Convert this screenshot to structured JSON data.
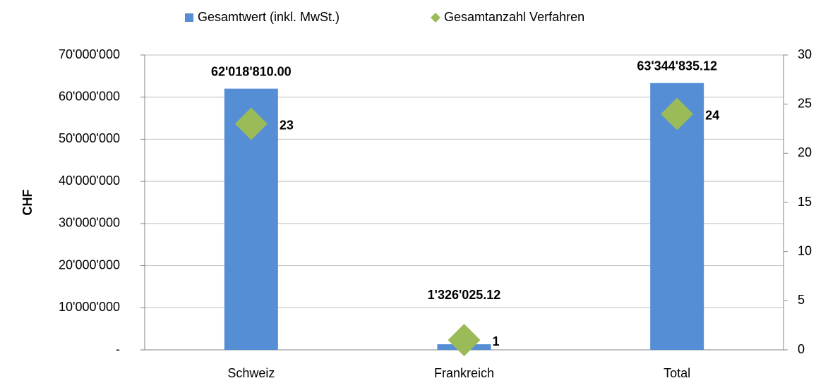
{
  "chart_data": {
    "type": "bar",
    "y_label": "CHF",
    "categories": [
      "Schweiz",
      "Frankreich",
      "Total"
    ],
    "series": [
      {
        "name": "Gesamtwert (inkl. MwSt.)",
        "type": "bar",
        "color": "#558ed5",
        "values": [
          62018810.0,
          1326025.12,
          63344835.12
        ],
        "value_labels": [
          "62'018'810.00",
          "1'326'025.12",
          "63'344'835.12"
        ]
      },
      {
        "name": "Gesamtanzahl Verfahren",
        "type": "scatter",
        "axis": "y2",
        "color": "#9bbb59",
        "values": [
          23,
          1,
          24
        ]
      }
    ],
    "ylim": [
      0,
      70000000
    ],
    "yticks": [
      {
        "value": 0,
        "label": "-"
      },
      {
        "value": 10000000,
        "label": "10'000'000"
      },
      {
        "value": 20000000,
        "label": "20'000'000"
      },
      {
        "value": 30000000,
        "label": "30'000'000"
      },
      {
        "value": 40000000,
        "label": "40'000'000"
      },
      {
        "value": 50000000,
        "label": "50'000'000"
      },
      {
        "value": 60000000,
        "label": "60'000'000"
      },
      {
        "value": 70000000,
        "label": "70'000'000"
      }
    ],
    "y2lim": [
      0,
      30
    ],
    "y2ticks": [
      0,
      5,
      10,
      15,
      20,
      25,
      30
    ],
    "grid": true,
    "legend": "top"
  }
}
